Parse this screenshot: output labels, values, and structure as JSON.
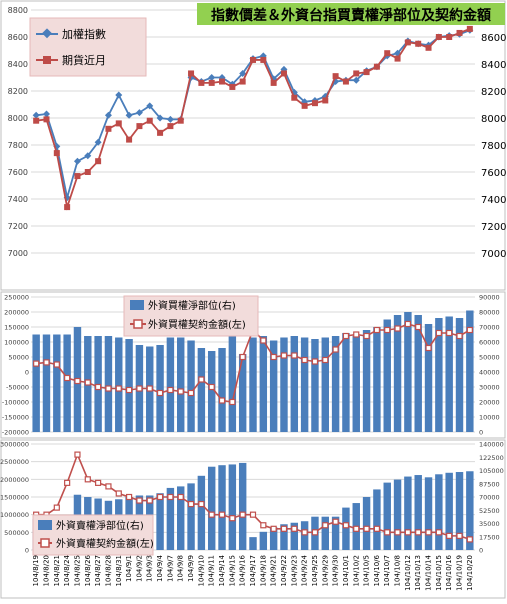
{
  "title": "指數價差＆外資台指買賣權淨部位及契約金額",
  "colors": {
    "index_line": "#4a7ebb",
    "futures_line": "#be4b48",
    "bar_fill": "#4a7ebb",
    "oi_line": "#c0504d",
    "title_bg": "#92d050",
    "legend_bg": "#f2dcdb",
    "grid": "#d9d9d9"
  },
  "dates": [
    "104/8/19",
    "104/8/20",
    "104/8/21",
    "104/8/24",
    "104/8/25",
    "104/8/26",
    "104/8/27",
    "104/8/28",
    "104/8/31",
    "104/9/1",
    "104/9/2",
    "104/9/3",
    "104/9/4",
    "104/9/7",
    "104/9/8",
    "104/9/9",
    "104/9/10",
    "104/9/11",
    "104/9/14",
    "104/9/15",
    "104/9/16",
    "104/9/17",
    "104/9/18",
    "104/9/21",
    "104/9/22",
    "104/9/23",
    "104/9/24",
    "104/9/25",
    "104/9/29",
    "104/9/30",
    "104/10/1",
    "104/10/2",
    "104/10/5",
    "104/10/6",
    "104/10/7",
    "104/10/8",
    "104/10/12",
    "104/10/13",
    "104/10/14",
    "104/10/15",
    "104/10/16",
    "104/10/19",
    "104/10/20"
  ],
  "x_tick_labels": [
    "104/8/19",
    "104/8/20",
    "104/8/21",
    "104/8/24",
    "104/8/25",
    "104/8/26",
    "104/8/27",
    "104/8/28",
    "104/8/31",
    "104/9/1",
    "104/9/2",
    "104/9/3",
    "104/9/4",
    "104/9/7",
    "104/9/8",
    "104/9/9",
    "104/9/10",
    "104/9/11",
    "104/9/14",
    "104/9/15",
    "104/9/16",
    "104/9/17",
    "104/9/18",
    "104/9/21",
    "104/9/22",
    "104/9/23",
    "104/9/24",
    "104/9/25",
    "104/9/29",
    "104/9/30",
    "104/10/1",
    "104/10/2",
    "104/10/5",
    "104/10/6",
    "104/10/7",
    "104/10/8",
    "104/10/12",
    "104/10/13",
    "104/10/14",
    "104/10/15",
    "104/10/16",
    "104/10/19",
    "104/10/20"
  ],
  "chart_data": [
    {
      "type": "line",
      "series": [
        {
          "name": "加權指數",
          "values": [
            8020,
            8030,
            7790,
            7410,
            7680,
            7720,
            7820,
            8020,
            8170,
            8020,
            8040,
            8090,
            8000,
            7990,
            7990,
            8300,
            8270,
            8300,
            8300,
            8250,
            8330,
            8440,
            8460,
            8290,
            8360,
            8190,
            8120,
            8130,
            8160,
            8270,
            8280,
            8280,
            8350,
            8380,
            8460,
            8480,
            8570,
            8550,
            8540,
            8600,
            8610,
            8620,
            8650
          ]
        },
        {
          "name": "期貨近月",
          "values": [
            7980,
            7990,
            7740,
            7340,
            7570,
            7600,
            7680,
            7920,
            7960,
            7840,
            7940,
            7980,
            7890,
            7940,
            7980,
            8330,
            8260,
            8260,
            8270,
            8230,
            8270,
            8430,
            8430,
            8260,
            8330,
            8150,
            8090,
            8110,
            8130,
            8310,
            8270,
            8330,
            8340,
            8380,
            8480,
            8440,
            8560,
            8550,
            8520,
            8600,
            8600,
            8630,
            8660
          ]
        }
      ],
      "ylim": [
        7000,
        8800
      ],
      "y_ticks": [
        7000,
        7200,
        7400,
        7600,
        7800,
        8000,
        8200,
        8400,
        8600,
        8800
      ],
      "y_tick_labels_left": [
        "7000",
        "7200",
        "7400",
        "7600",
        "7800",
        "8000",
        "8200",
        "8400",
        "8600",
        "8800"
      ],
      "y_tick_labels_right": [
        "7000",
        "7200",
        "7400",
        "7600",
        "7800",
        "8000",
        "8200",
        "8400",
        "8600"
      ],
      "legend_position": "top-left",
      "grid": true
    },
    {
      "type": "bar",
      "series": [
        {
          "name": "外資買權淨部位(右)",
          "axis": "right",
          "values": [
            65000,
            65000,
            65000,
            65000,
            70000,
            64000,
            64000,
            64000,
            63000,
            62000,
            58000,
            57000,
            58000,
            63000,
            63000,
            61000,
            56000,
            54000,
            56000,
            66000,
            52000,
            63000,
            64000,
            61000,
            63000,
            64000,
            63000,
            62000,
            63000,
            64000,
            66000,
            64000,
            68000,
            70000,
            75000,
            78000,
            80000,
            78000,
            72000,
            76000,
            77000,
            76000,
            81000
          ]
        },
        {
          "name": "外資買權契約金額(左)",
          "axis": "left",
          "type": "line",
          "values": [
            28000,
            32000,
            25000,
            -20000,
            -30000,
            -35000,
            -50000,
            -55000,
            -55000,
            -60000,
            -55000,
            -55000,
            -70000,
            -60000,
            -65000,
            -70000,
            -25000,
            -50000,
            -95000,
            -100000,
            50000,
            140000,
            105000,
            50000,
            55000,
            55000,
            40000,
            35000,
            40000,
            75000,
            120000,
            125000,
            120000,
            140000,
            140000,
            145000,
            160000,
            150000,
            80000,
            130000,
            130000,
            120000,
            140000
          ]
        }
      ],
      "ylim_left": [
        -200000,
        250000
      ],
      "ylim_right": [
        0,
        90000
      ],
      "y_ticks_left": [
        -200000,
        -150000,
        -100000,
        -50000,
        0,
        50000,
        100000,
        150000,
        200000,
        250000
      ],
      "y_tick_labels_left": [
        "-200000",
        "-150000",
        "-100000",
        "-50000",
        "0",
        "50000",
        "100000",
        "150000",
        "200000",
        "250000"
      ],
      "y_ticks_right": [
        0,
        10000,
        20000,
        30000,
        40000,
        50000,
        60000,
        70000,
        80000,
        90000
      ],
      "y_tick_labels_right": [
        "0",
        "10000",
        "20000",
        "30000",
        "40000",
        "50000",
        "60000",
        "70000",
        "80000",
        "90000"
      ],
      "legend_position": "top-center",
      "grid": true
    },
    {
      "type": "bar",
      "series": [
        {
          "name": "外資賣權淨部位(右)",
          "axis": "right",
          "values": [
            41000,
            41000,
            41000,
            41000,
            73000,
            70000,
            68000,
            65000,
            67000,
            70000,
            72000,
            72000,
            75000,
            82000,
            84000,
            88000,
            98000,
            110000,
            112000,
            113000,
            115000,
            17000,
            24000,
            30000,
            34000,
            36000,
            38000,
            44000,
            44000,
            44000,
            56000,
            62000,
            70000,
            80000,
            89000,
            93000,
            97000,
            99000,
            96000,
            100000,
            102000,
            103000,
            104000
          ]
        },
        {
          "name": "外資賣權契約金額(左)",
          "axis": "left",
          "type": "line",
          "values": [
            1000000,
            1000000,
            1200000,
            1900000,
            2700000,
            2000000,
            1900000,
            1800000,
            1600000,
            1500000,
            1400000,
            1400000,
            1500000,
            1500000,
            1500000,
            1300000,
            1300000,
            1000000,
            1000000,
            900000,
            1000000,
            1000000,
            700000,
            600000,
            600000,
            600000,
            500000,
            500000,
            700000,
            800000,
            700000,
            600000,
            600000,
            600000,
            500000,
            500000,
            500000,
            500000,
            500000,
            500000,
            400000,
            400000,
            300000
          ]
        }
      ],
      "ylim_left": [
        0,
        3000000
      ],
      "ylim_right": [
        0,
        140000
      ],
      "y_ticks_left": [
        0,
        500000,
        1000000,
        1500000,
        2000000,
        2500000,
        3000000
      ],
      "y_tick_labels_left": [
        "0",
        "500000",
        "1000000",
        "1500000",
        "2000000",
        "2500000",
        "3000000"
      ],
      "y_ticks_right": [
        0,
        17500,
        35000,
        52500,
        70000,
        87500,
        105000,
        122500,
        140000
      ],
      "y_tick_labels_right": [
        "0",
        "17500",
        "35000",
        "52500",
        "70000",
        "87500",
        "105000",
        "122500",
        "140000"
      ],
      "legend_position": "bottom-left",
      "grid": true
    }
  ]
}
